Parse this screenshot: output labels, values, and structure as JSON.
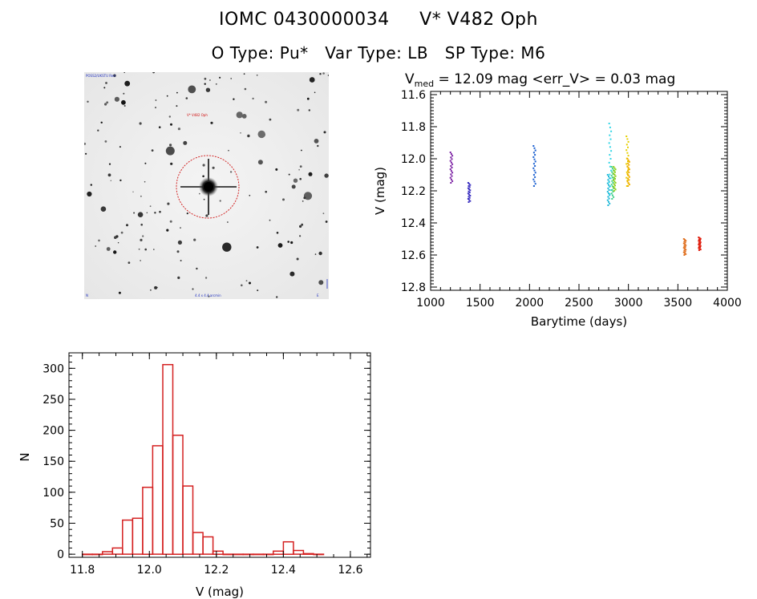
{
  "header": {
    "object_id": "IOMC 0430000034",
    "object_name": "V* V482 Oph",
    "o_type_label": "O Type:",
    "o_type": "Pu*",
    "var_type_label": "Var Type:",
    "var_type": "LB",
    "sp_type_label": "SP Type:",
    "sp_type": "M6"
  },
  "finder": {
    "top_left_label": "POSS2/UKSTU Red",
    "target_label": "V* V482 Oph",
    "bottom_center_label": "4.4 x 4.4 arcmin",
    "bottom_left_label": "N",
    "bottom_right_label": "E"
  },
  "chart_data": [
    {
      "type": "scatter",
      "title_prefix": "V",
      "title_subscript": "med",
      "title_suffix": " = 12.09 mag <err_V> = 0.03 mag",
      "xlabel": "Barytime (days)",
      "ylabel": "V (mag)",
      "xlim": [
        1000,
        4000
      ],
      "ylim": [
        12.82,
        11.58
      ],
      "y_inverted": true,
      "xticks": [
        1000,
        1500,
        2000,
        2500,
        3000,
        3500,
        4000
      ],
      "xtick_labels": [
        "1000",
        "1500",
        "2000",
        "2500",
        "3000",
        "3500",
        "4000"
      ],
      "yticks": [
        11.6,
        11.8,
        12.0,
        12.2,
        12.4,
        12.6,
        12.8
      ],
      "ytick_labels": [
        "11.6",
        "11.8",
        "12.0",
        "12.2",
        "12.4",
        "12.6",
        "12.8"
      ],
      "groups": [
        {
          "x": 1210,
          "ymin": 11.96,
          "ymax": 12.15,
          "color": "#7a1fa2"
        },
        {
          "x": 1390,
          "ymin": 12.15,
          "ymax": 12.27,
          "color": "#3a2fc0"
        },
        {
          "x": 2050,
          "ymin": 11.92,
          "ymax": 12.17,
          "color": "#1a5fd0"
        },
        {
          "x": 2800,
          "ymin": 12.1,
          "ymax": 12.29,
          "color": "#1fb8d8"
        },
        {
          "x": 2815,
          "ymin": 11.78,
          "ymax": 12.22,
          "color": "#33d6e6"
        },
        {
          "x": 2840,
          "ymin": 12.05,
          "ymax": 12.25,
          "color": "#3fd08a"
        },
        {
          "x": 2860,
          "ymin": 12.05,
          "ymax": 12.2,
          "color": "#8fd020"
        },
        {
          "x": 2990,
          "ymin": 11.86,
          "ymax": 12.17,
          "color": "#e6d000"
        },
        {
          "x": 3000,
          "ymin": 12.0,
          "ymax": 12.17,
          "color": "#f0b000"
        },
        {
          "x": 3570,
          "ymin": 12.5,
          "ymax": 12.6,
          "color": "#e07020"
        },
        {
          "x": 3720,
          "ymin": 12.49,
          "ymax": 12.57,
          "color": "#e02010"
        }
      ]
    },
    {
      "type": "bar",
      "xlabel": "V (mag)",
      "ylabel": "N",
      "xlim": [
        11.76,
        12.66
      ],
      "ylim": [
        -5,
        325
      ],
      "xticks": [
        11.8,
        12.0,
        12.2,
        12.4,
        12.6
      ],
      "xtick_labels": [
        "11.8",
        "12.0",
        "12.2",
        "12.4",
        "12.6"
      ],
      "yticks": [
        0,
        50,
        100,
        150,
        200,
        250,
        300
      ],
      "ytick_labels": [
        "0",
        "50",
        "100",
        "150",
        "200",
        "250",
        "300"
      ],
      "bin_start": 11.8,
      "bin_width": 0.03,
      "color": "#d42020",
      "values": [
        0,
        0,
        4,
        10,
        55,
        58,
        108,
        175,
        306,
        192,
        110,
        35,
        28,
        5,
        0,
        0,
        0,
        0,
        0,
        5,
        20,
        6,
        1,
        0
      ]
    }
  ]
}
